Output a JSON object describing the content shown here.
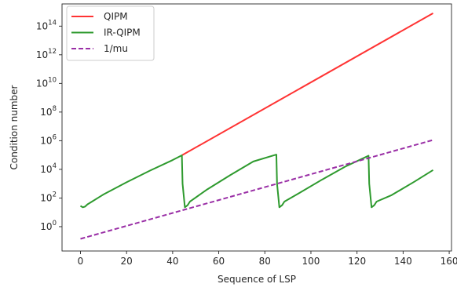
{
  "chart_data": {
    "type": "line",
    "xlabel": "Sequence of LSP",
    "ylabel": "Condition number",
    "y_scale": "log",
    "xlim": [
      -8,
      161
    ],
    "ylim_log10": [
      -1.7,
      15.55
    ],
    "grid": false,
    "legend_position": "top-left",
    "x_ticks": [
      0,
      20,
      40,
      60,
      80,
      100,
      120,
      140,
      160
    ],
    "y_ticks": [
      {
        "exp": 0,
        "label_base": "10",
        "label_exp": "0"
      },
      {
        "exp": 2,
        "label_base": "10",
        "label_exp": "2"
      },
      {
        "exp": 4,
        "label_base": "10",
        "label_exp": "4"
      },
      {
        "exp": 6,
        "label_base": "10",
        "label_exp": "6"
      },
      {
        "exp": 8,
        "label_base": "10",
        "label_exp": "8"
      },
      {
        "exp": 10,
        "label_base": "10",
        "label_exp": "10"
      },
      {
        "exp": 12,
        "label_base": "10",
        "label_exp": "12"
      },
      {
        "exp": 14,
        "label_base": "10",
        "label_exp": "14"
      }
    ],
    "series": [
      {
        "name": "QIPM",
        "color": "#ff3333",
        "dash": "solid",
        "points": [
          [
            44,
            4.98
          ],
          [
            153,
            14.9
          ]
        ]
      },
      {
        "name": "IR-QIPM",
        "color": "#2e9a2e",
        "dash": "solid",
        "points": [
          [
            0,
            1.45
          ],
          [
            1,
            1.35
          ],
          [
            2,
            1.4
          ],
          [
            3,
            1.55
          ],
          [
            5,
            1.75
          ],
          [
            10,
            2.25
          ],
          [
            20,
            3.1
          ],
          [
            30,
            3.9
          ],
          [
            40,
            4.65
          ],
          [
            44,
            4.98
          ],
          [
            44.3,
            3.0
          ],
          [
            45.3,
            1.35
          ],
          [
            46.5,
            1.5
          ],
          [
            47.5,
            1.75
          ],
          [
            55,
            2.6
          ],
          [
            65,
            3.6
          ],
          [
            75,
            4.55
          ],
          [
            85,
            5.03
          ],
          [
            85.3,
            3.0
          ],
          [
            86.3,
            1.35
          ],
          [
            87.5,
            1.5
          ],
          [
            88.5,
            1.75
          ],
          [
            95,
            2.35
          ],
          [
            105,
            3.3
          ],
          [
            115,
            4.2
          ],
          [
            125,
            4.95
          ],
          [
            125.3,
            3.0
          ],
          [
            126.3,
            1.35
          ],
          [
            127.5,
            1.5
          ],
          [
            128.5,
            1.75
          ],
          [
            135,
            2.2
          ],
          [
            145,
            3.15
          ],
          [
            153,
            3.95
          ]
        ]
      },
      {
        "name": "1/mu",
        "color": "#9a2fa6",
        "dash": "dashed",
        "points": [
          [
            0,
            -0.85
          ],
          [
            153,
            6.05
          ]
        ]
      }
    ]
  }
}
